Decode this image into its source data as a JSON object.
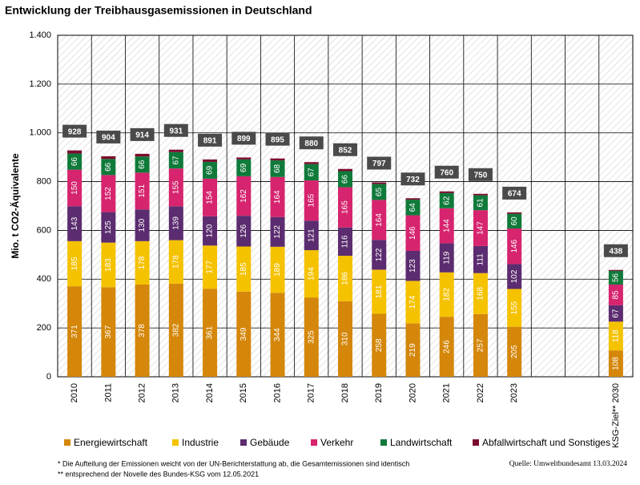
{
  "chart_data": {
    "type": "stacked_bar",
    "title": "Entwicklung der Treibhausgasemissionen in Deutschland",
    "y_label": "Mio. t CO2-Äquivalente",
    "categories": [
      "2010",
      "2011",
      "2012",
      "2013",
      "2014",
      "2015",
      "2016",
      "2017",
      "2018",
      "2019",
      "2020",
      "2021",
      "2022",
      "2023",
      null,
      null,
      "KSG-Ziel** 2030"
    ],
    "series": [
      {
        "name": "Energiewirtschaft",
        "color": "#d4870a",
        "values": [
          371,
          367,
          378,
          382,
          361,
          349,
          344,
          325,
          310,
          258,
          219,
          246,
          257,
          205,
          null,
          null,
          108
        ]
      },
      {
        "name": "Industrie",
        "color": "#f5c200",
        "values": [
          185,
          183,
          178,
          178,
          177,
          185,
          189,
          194,
          186,
          181,
          174,
          182,
          168,
          155,
          null,
          null,
          118
        ]
      },
      {
        "name": "Gebäude",
        "color": "#5b2c6f",
        "values": [
          143,
          125,
          130,
          139,
          120,
          126,
          122,
          121,
          116,
          122,
          123,
          119,
          111,
          102,
          null,
          null,
          67
        ]
      },
      {
        "name": "Verkehr",
        "color": "#d6246e",
        "values": [
          150,
          152,
          151,
          155,
          154,
          162,
          164,
          165,
          165,
          164,
          146,
          144,
          147,
          146,
          null,
          null,
          85
        ]
      },
      {
        "name": "Landwirtschaft",
        "color": "#0f7a3a",
        "values": [
          66,
          66,
          66,
          67,
          69,
          69,
          68,
          67,
          66,
          65,
          64,
          62,
          61,
          60,
          null,
          null,
          56
        ]
      },
      {
        "name": "Abfallwirtschaft und Sonstiges",
        "color": "#7a0c2e",
        "values": [
          13,
          11,
          11,
          10,
          10,
          8,
          8,
          8,
          9,
          7,
          6,
          7,
          6,
          6,
          null,
          null,
          4
        ]
      }
    ],
    "totals": [
      928,
      904,
      914,
      931,
      891,
      899,
      895,
      880,
      852,
      797,
      732,
      760,
      750,
      674,
      null,
      null,
      438
    ],
    "ylim": [
      0,
      1400
    ],
    "yticks": [
      0,
      200,
      400,
      600,
      800,
      {
        "value": 1000,
        "label": "1.000"
      },
      {
        "value": 1200,
        "label": "1.200"
      },
      {
        "value": 1400,
        "label": "1.400"
      }
    ],
    "grid": true,
    "footnotes": [
      "* Die Aufteilung der Emissionen weicht von der UN-Berichterstattung ab, die Gesamtemissionen sind identisch",
      "** entsprechend der Novelle des Bundes-KSG vom 12.05.2021"
    ],
    "source": "Quelle: Umweltbundesamt  13.03.2024"
  }
}
